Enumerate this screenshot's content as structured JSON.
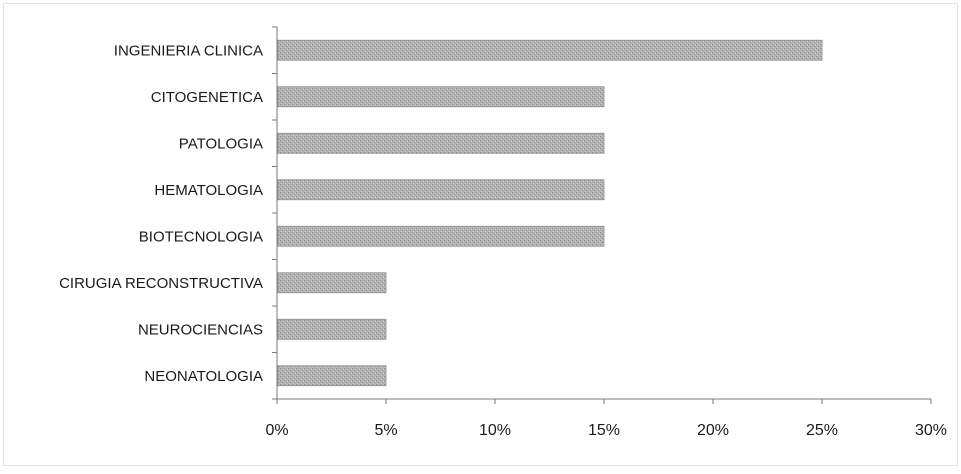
{
  "chart_data": {
    "type": "bar",
    "orientation": "horizontal",
    "categories": [
      "INGENIERIA CLINICA",
      "CITOGENETICA",
      "PATOLOGIA",
      "HEMATOLOGIA",
      "BIOTECNOLOGIA",
      "CIRUGIA RECONSTRUCTIVA",
      "NEUROCIENCIAS",
      "NEONATOLOGIA"
    ],
    "values": [
      25,
      15,
      15,
      15,
      15,
      5,
      5,
      5
    ],
    "xlim": [
      0,
      30
    ],
    "xticks": [
      "0%",
      "5%",
      "10%",
      "15%",
      "20%",
      "25%",
      "30%"
    ],
    "title": "",
    "xlabel": "",
    "ylabel": "",
    "grid": false,
    "legend": "none",
    "bar_color": "#a8a8a8"
  }
}
